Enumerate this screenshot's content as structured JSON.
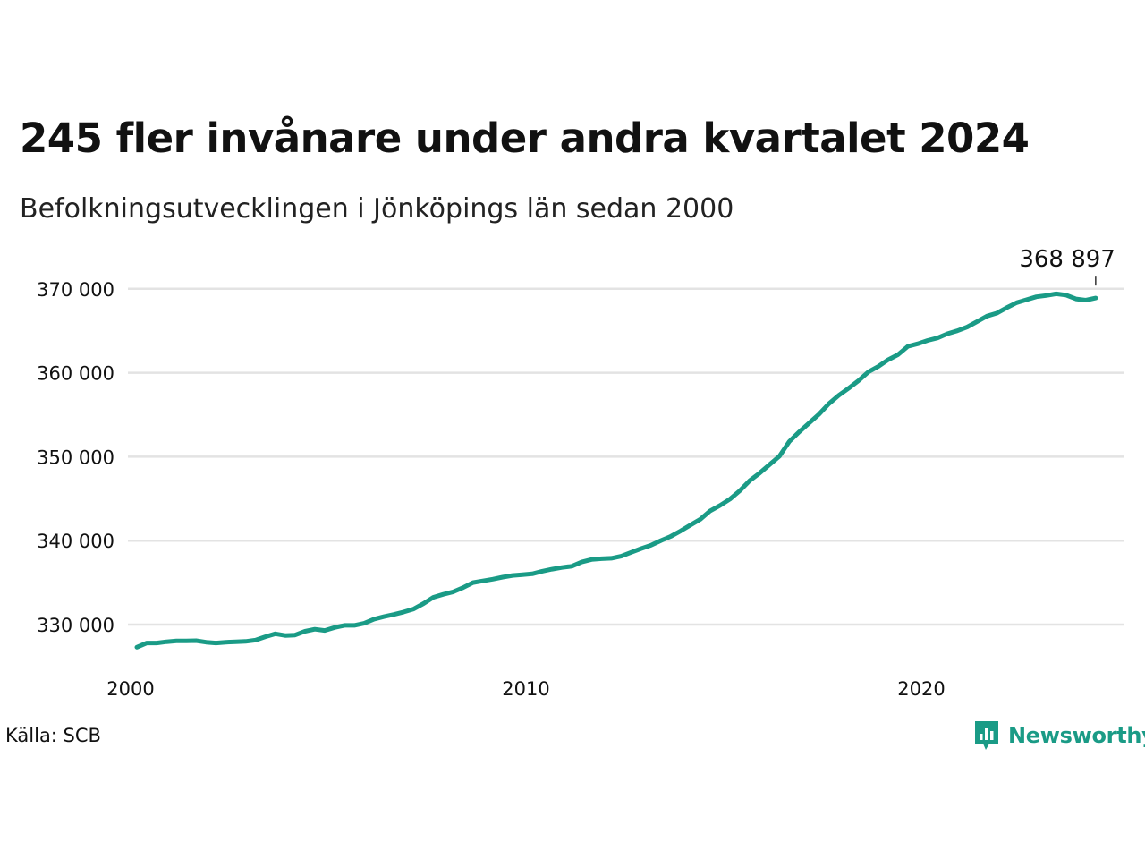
{
  "title": "245 fler invånare under andra kvartalet 2024",
  "subtitle": "Befolkningsutvecklingen i Jönköpings län sedan 2000",
  "source": "Källa: SCB",
  "brand": {
    "name": "Newsworthy",
    "icon": "newsworthy-logo-icon",
    "color": "#1a9b86"
  },
  "chart_data": {
    "type": "line",
    "title": "245 fler invånare under andra kvartalet 2024",
    "xlabel": "",
    "ylabel": "",
    "xlim": [
      2000,
      2025
    ],
    "ylim": [
      325000,
      371500
    ],
    "yticks": [
      330000,
      340000,
      350000,
      360000,
      370000
    ],
    "ytick_labels": [
      "330 000",
      "340 000",
      "350 000",
      "360 000",
      "370 000"
    ],
    "xticks": [
      2000,
      2010,
      2020
    ],
    "xtick_labels": [
      "2000",
      "2010",
      "2020"
    ],
    "grid": "horizontal",
    "color": "#1a9b86",
    "last_label": "368 897",
    "series": [
      {
        "x": [
          2000.0,
          2000.25,
          2000.5,
          2000.75,
          2001.0,
          2001.25,
          2001.5,
          2001.75,
          2002.0,
          2002.25,
          2002.5,
          2002.75,
          2003.0,
          2003.25,
          2003.5,
          2003.75,
          2004.0,
          2004.25,
          2004.5,
          2004.75,
          2005.0,
          2005.25,
          2005.5,
          2005.75,
          2006.0,
          2006.25,
          2006.5,
          2006.75,
          2007.0,
          2007.25,
          2007.5,
          2007.75,
          2008.0,
          2008.25,
          2008.5,
          2008.75,
          2009.0,
          2009.25,
          2009.5,
          2009.75,
          2010.0,
          2010.25,
          2010.5,
          2010.75,
          2011.0,
          2011.25,
          2011.5,
          2011.75,
          2012.0,
          2012.25,
          2012.5,
          2012.75,
          2013.0,
          2013.25,
          2013.5,
          2013.75,
          2014.0,
          2014.25,
          2014.5,
          2014.75,
          2015.0,
          2015.25,
          2015.5,
          2015.75,
          2016.0,
          2016.25,
          2016.5,
          2016.75,
          2017.0,
          2017.25,
          2017.5,
          2017.75,
          2018.0,
          2018.25,
          2018.5,
          2018.75,
          2019.0,
          2019.25,
          2019.5,
          2019.75,
          2020.0,
          2020.25,
          2020.5,
          2020.75,
          2021.0,
          2021.25,
          2021.5,
          2021.75,
          2022.0,
          2022.25,
          2022.5,
          2022.75,
          2023.0,
          2023.25,
          2023.5,
          2023.75,
          2024.0,
          2024.25
        ],
        "values": [
          327300,
          327800,
          327800,
          327950,
          328050,
          328050,
          328080,
          327900,
          327800,
          327900,
          327950,
          328000,
          328150,
          328550,
          328900,
          328700,
          328750,
          329200,
          329450,
          329300,
          329650,
          329900,
          329900,
          330150,
          330650,
          330950,
          331200,
          331500,
          331850,
          332500,
          333250,
          333600,
          333900,
          334400,
          335000,
          335200,
          335400,
          335650,
          335850,
          335950,
          336050,
          336350,
          336600,
          336800,
          336950,
          337450,
          337750,
          337850,
          337900,
          338150,
          338600,
          339050,
          339450,
          340000,
          340500,
          341150,
          341850,
          342550,
          343550,
          344200,
          344950,
          345950,
          347150,
          348050,
          349050,
          350050,
          351800,
          352950,
          354000,
          355050,
          356300,
          357300,
          358150,
          359050,
          360100,
          360750,
          361550,
          362150,
          363150,
          363450,
          363850,
          364150,
          364650,
          365000,
          365450,
          366100,
          366750,
          367100,
          367750,
          368350,
          368700,
          369050,
          369200,
          369400,
          369250,
          368800,
          368650,
          368897
        ]
      }
    ]
  }
}
